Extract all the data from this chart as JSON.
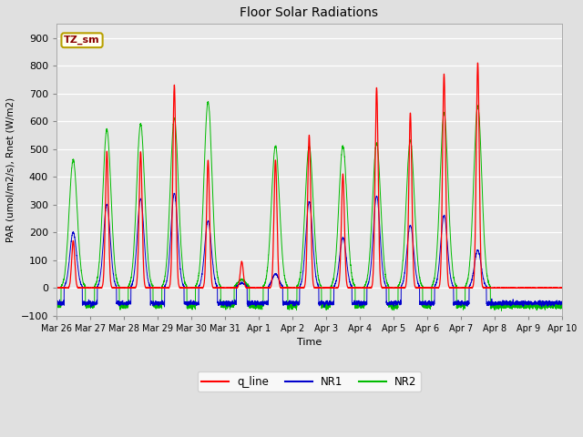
{
  "title": "Floor Solar Radiations",
  "xlabel": "Time",
  "ylabel": "PAR (umol/m2/s), Rnet (W/m2)",
  "ylim": [
    -100,
    950
  ],
  "yticks": [
    -100,
    0,
    100,
    200,
    300,
    400,
    500,
    600,
    700,
    800,
    900
  ],
  "outer_bg": "#e0e0e0",
  "plot_bg_color": "#e8e8e8",
  "line_colors": {
    "q_line": "#ff0000",
    "NR1": "#0000cc",
    "NR2": "#00bb00"
  },
  "legend_box_color": "#fffff0",
  "legend_box_edge": "#b8a000",
  "xtick_labels": [
    "Mar 26",
    "Mar 27",
    "Mar 28",
    "Mar 29",
    "Mar 30",
    "Mar 31",
    "Apr 1",
    "Apr 2",
    "Apr 3",
    "Apr 4",
    "Apr 5",
    "Apr 6",
    "Apr 7",
    "Apr 8",
    "Apr 9",
    "Apr 10"
  ],
  "n_days": 15,
  "points_per_day": 288,
  "day_peaks_q": [
    170,
    490,
    490,
    730,
    460,
    95,
    460,
    550,
    410,
    720,
    630,
    770,
    810,
    0,
    0
  ],
  "day_peaks_nr1": [
    200,
    300,
    320,
    340,
    240,
    18,
    50,
    310,
    180,
    330,
    225,
    260,
    135,
    0,
    0
  ],
  "day_peaks_nr2": [
    460,
    570,
    590,
    610,
    670,
    30,
    510,
    510,
    510,
    520,
    530,
    630,
    655,
    0,
    0
  ],
  "nr1_night": -55,
  "nr2_night": -65,
  "q_flat": 0.0
}
